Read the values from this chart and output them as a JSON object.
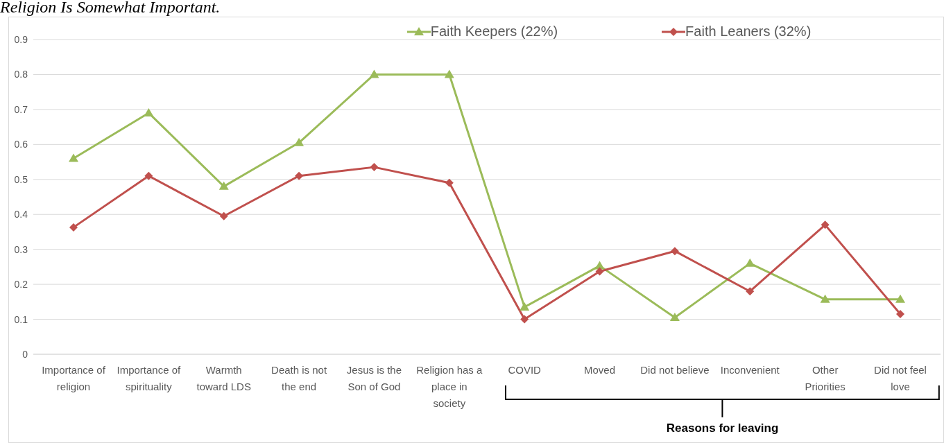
{
  "chart_data": {
    "type": "line",
    "title": "Religion Is Somewhat Important.",
    "categories": [
      "Importance of religion",
      "Importance of spirituality",
      "Warmth toward LDS",
      "Death is not the end",
      "Jesus is the Son of God",
      "Religion has a place in society",
      "COVID",
      "Moved",
      "Did not believe",
      "Inconvenient",
      "Other Priorities",
      "Did not feel love"
    ],
    "series": [
      {
        "name": "Faith Keepers (22%)",
        "color": "#9bbb59",
        "marker": "triangle",
        "values": [
          0.56,
          0.69,
          0.48,
          0.605,
          0.8,
          0.8,
          0.135,
          0.253,
          0.105,
          0.26,
          0.157,
          0.157
        ]
      },
      {
        "name": "Faith Leaners (32%)",
        "color": "#c0504d",
        "marker": "diamond",
        "values": [
          0.363,
          0.51,
          0.395,
          0.51,
          0.535,
          0.49,
          0.1,
          0.237,
          0.295,
          0.18,
          0.37,
          0.115
        ]
      }
    ],
    "ylim": [
      0,
      0.9
    ],
    "yticks": [
      0,
      0.1,
      0.2,
      0.3,
      0.4,
      0.5,
      0.6,
      0.7,
      0.8,
      0.9
    ],
    "grid": "y",
    "legend": "top",
    "line_style": "solid",
    "annotations": [
      "Reasons for leaving"
    ]
  }
}
